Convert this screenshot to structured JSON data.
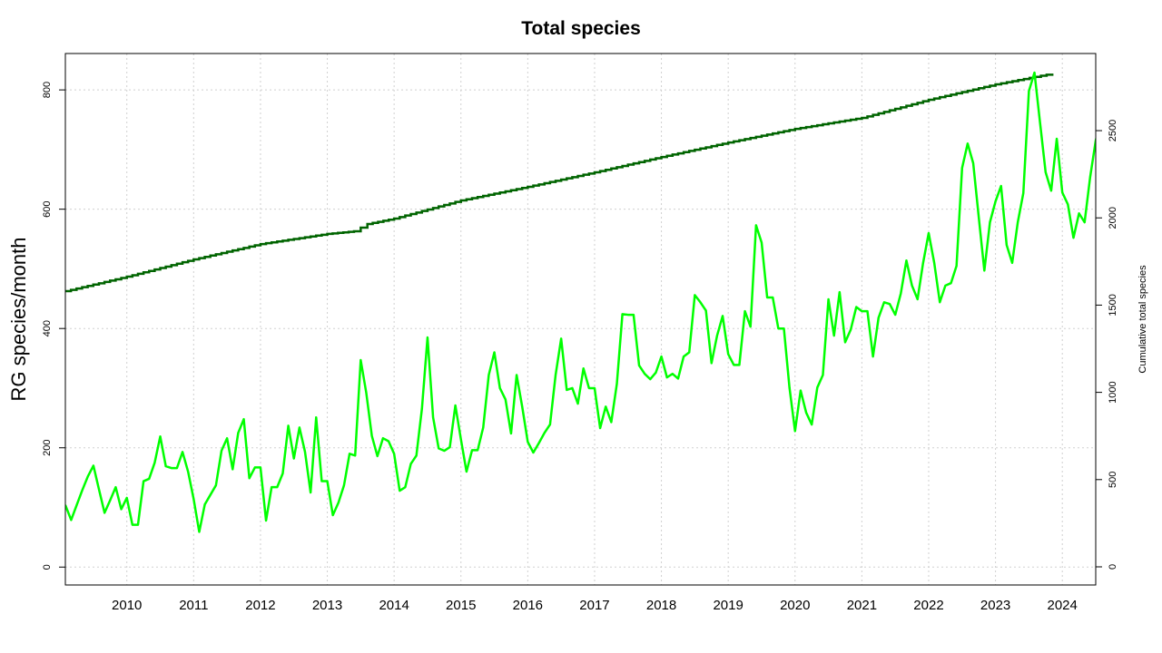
{
  "chart_data": {
    "type": "line",
    "title": "Total species",
    "xlabel": "",
    "ylabel": "RG species/month",
    "y2label": "Cumulative total species",
    "xlim": [
      2009.08,
      2024.5
    ],
    "ylim": [
      -30,
      861
    ],
    "y2lim": [
      -104,
      2942
    ],
    "xticks": [
      "2010",
      "2011",
      "2012",
      "2013",
      "2014",
      "2015",
      "2016",
      "2017",
      "2018",
      "2019",
      "2020",
      "2021",
      "2022",
      "2023",
      "2024"
    ],
    "yticks": [
      "0",
      "200",
      "400",
      "600",
      "800"
    ],
    "y2ticks": [
      "0",
      "500",
      "1000",
      "1500",
      "2000",
      "2500"
    ],
    "grid": true,
    "series": [
      {
        "axis": "left",
        "color": "#00ff00",
        "start_month": "2009-01",
        "frequency": "monthly",
        "values": [
          94,
          103,
          79,
          104,
          129,
          152,
          170,
          130,
          91,
          112,
          134,
          97,
          116,
          71,
          71,
          144,
          148,
          175,
          219,
          169,
          166,
          166,
          193,
          160,
          114,
          59,
          105,
          121,
          137,
          195,
          216,
          164,
          225,
          248,
          149,
          167,
          167,
          78,
          134,
          134,
          157,
          237,
          182,
          234,
          193,
          125,
          251,
          144,
          144,
          87,
          108,
          137,
          190,
          187,
          347,
          292,
          220,
          186,
          216,
          211,
          190,
          128,
          134,
          173,
          187,
          266,
          385,
          251,
          199,
          195,
          201,
          271,
          214,
          160,
          196,
          196,
          234,
          322,
          360,
          300,
          281,
          224,
          322,
          269,
          210,
          192,
          208,
          225,
          239,
          322,
          383,
          297,
          300,
          274,
          333,
          300,
          300,
          233,
          269,
          243,
          307,
          424,
          423,
          423,
          338,
          324,
          315,
          326,
          353,
          318,
          324,
          316,
          353,
          360,
          456,
          444,
          430,
          342,
          388,
          421,
          357,
          339,
          339,
          429,
          403,
          573,
          544,
          452,
          452,
          400,
          400,
          301,
          228,
          296,
          259,
          239,
          301,
          322,
          449,
          388,
          461,
          377,
          398,
          436,
          429,
          429,
          353,
          418,
          444,
          441,
          423,
          459,
          514,
          472,
          449,
          510,
          560,
          510,
          444,
          472,
          476,
          505,
          669,
          710,
          677,
          586,
          497,
          578,
          613,
          639,
          540,
          510,
          578,
          627,
          798,
          829,
          745,
          662,
          631,
          718,
          628,
          608,
          552,
          593,
          578,
          654,
          715,
          753
        ]
      },
      {
        "axis": "right",
        "color": "#006400",
        "step": true,
        "points": [
          [
            2009.08,
            1580
          ],
          [
            2010,
            1663
          ],
          [
            2011,
            1762
          ],
          [
            2012,
            1850
          ],
          [
            2013,
            1908
          ],
          [
            2013.4,
            1923
          ],
          [
            2013.6,
            1965
          ],
          [
            2014,
            1996
          ],
          [
            2015,
            2100
          ],
          [
            2016,
            2178
          ],
          [
            2017,
            2261
          ],
          [
            2018,
            2349
          ],
          [
            2019,
            2432
          ],
          [
            2020,
            2510
          ],
          [
            2021,
            2573
          ],
          [
            2022,
            2677
          ],
          [
            2023,
            2765
          ],
          [
            2023.85,
            2827
          ]
        ]
      }
    ]
  }
}
